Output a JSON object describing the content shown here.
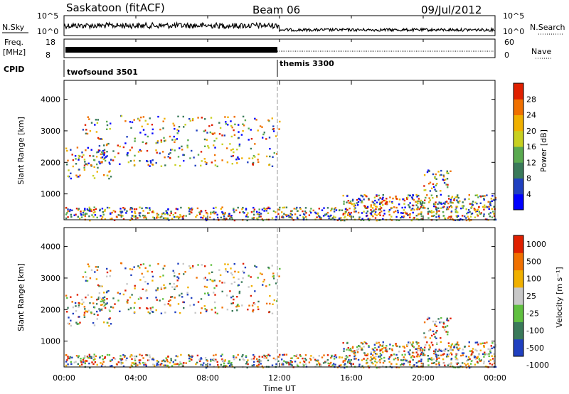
{
  "header": {
    "station": "Saskatoon (fitACF)",
    "beam": "Beam 06",
    "date": "09/Jul/2012"
  },
  "top_panels": {
    "nsky_label": "N.Sky",
    "nsky_ticks": [
      "10^5",
      "10^0"
    ],
    "nsearch_label": "N.Search",
    "nsearch_ticks": [
      "10^5",
      "10^0"
    ],
    "freq_label_1": "Freq.",
    "freq_label_2": "[MHz]",
    "freq_ticks": [
      "18",
      "8"
    ],
    "nave_label": "Nave",
    "nave_ticks": [
      "60",
      "0"
    ],
    "cpid_label": "CPID",
    "cpid_programs": [
      {
        "name": "twofsound 3501",
        "start_hour": 0
      },
      {
        "name": "themis 3300",
        "start_hour": 12
      }
    ]
  },
  "chart_data": [
    {
      "type": "heatmap",
      "panel": "power",
      "xlabel": "",
      "ylabel": "Slant Range [km]",
      "x_range_hours": [
        0,
        24
      ],
      "ylim": [
        180,
        4600
      ],
      "y_ticks": [
        1000,
        2000,
        3000,
        4000
      ],
      "colorbar_label": "Power [dB]",
      "colorbar_ticks": [
        4,
        8,
        12,
        16,
        20,
        24,
        28
      ],
      "colorbar_colors": [
        "#0000ff",
        "#2040c0",
        "#3a7a5a",
        "#5aaa50",
        "#c8d020",
        "#f0b000",
        "#f07000",
        "#e02000"
      ],
      "scatter_regions": [
        {
          "x_start": 0.0,
          "x_end": 2.8,
          "range_low": 1500,
          "range_high": 2500
        },
        {
          "x_start": 1.0,
          "x_end": 12.0,
          "range_low": 1900,
          "range_high": 3500
        },
        {
          "x_start": 0.0,
          "x_end": 24.0,
          "range_low": 180,
          "range_high": 600
        },
        {
          "x_start": 15.5,
          "x_end": 24.0,
          "range_low": 600,
          "range_high": 1000
        },
        {
          "x_start": 20.0,
          "x_end": 21.5,
          "range_low": 1100,
          "range_high": 1800
        }
      ]
    },
    {
      "type": "heatmap",
      "panel": "velocity",
      "xlabel": "Time UT",
      "ylabel": "Slant Range [km]",
      "x_range_hours": [
        0,
        24
      ],
      "x_ticks": [
        "00:00",
        "04:00",
        "08:00",
        "12:00",
        "16:00",
        "20:00",
        "00:00"
      ],
      "ylim": [
        180,
        4600
      ],
      "y_ticks": [
        1000,
        2000,
        3000,
        4000
      ],
      "colorbar_label": "Velocity [m s⁻¹]",
      "colorbar_ticks": [
        1000,
        500,
        100,
        25,
        -25,
        -100,
        -500,
        -1000
      ],
      "colorbar_colors": [
        "#2040c0",
        "#3a7a5a",
        "#60c040",
        "#c8c8c8",
        "#f0b000",
        "#f07000",
        "#e02000"
      ]
    }
  ]
}
